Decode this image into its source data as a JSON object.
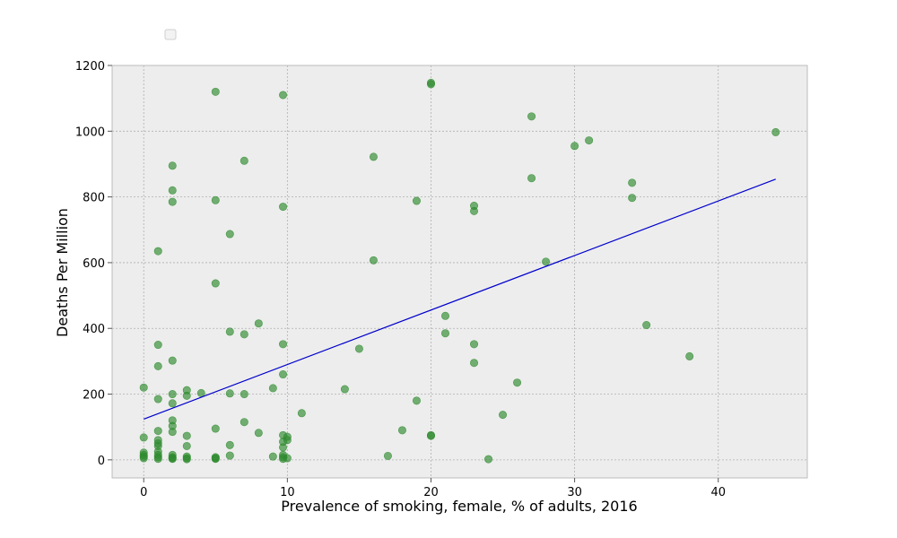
{
  "chart_data": {
    "type": "scatter",
    "title": "",
    "xlabel": "Prevalence of smoking, female, % of adults, 2016",
    "ylabel": "Deaths Per Million",
    "xlim": [
      -2.2,
      46.2
    ],
    "ylim": [
      -55,
      1200
    ],
    "xticks": [
      0,
      10,
      20,
      30,
      40
    ],
    "yticks": [
      0,
      200,
      400,
      600,
      800,
      1000,
      1200
    ],
    "grid": true,
    "legend": "top-left, empty",
    "colors": {
      "points": "#2e8b2e",
      "fit_line": "#0000cc",
      "plot_background": "#ededed",
      "grid": "#b0b0b0",
      "frame": "#bcbcbc"
    },
    "series": [
      {
        "points": [
          [
            0,
            220
          ],
          [
            0,
            68
          ],
          [
            0,
            22
          ],
          [
            0,
            15
          ],
          [
            0,
            10
          ],
          [
            0,
            5
          ],
          [
            1,
            635
          ],
          [
            1,
            350
          ],
          [
            1,
            285
          ],
          [
            1,
            185
          ],
          [
            1,
            88
          ],
          [
            1,
            60
          ],
          [
            1,
            50
          ],
          [
            1,
            42
          ],
          [
            1,
            25
          ],
          [
            1,
            15
          ],
          [
            1,
            8
          ],
          [
            1,
            3
          ],
          [
            2,
            895
          ],
          [
            2,
            820
          ],
          [
            2,
            785
          ],
          [
            2,
            302
          ],
          [
            2,
            200
          ],
          [
            2,
            172
          ],
          [
            2,
            120
          ],
          [
            2,
            103
          ],
          [
            2,
            85
          ],
          [
            2,
            15
          ],
          [
            2,
            8
          ],
          [
            2,
            5
          ],
          [
            2,
            3
          ],
          [
            3,
            212
          ],
          [
            3,
            195
          ],
          [
            3,
            73
          ],
          [
            3,
            42
          ],
          [
            3,
            10
          ],
          [
            3,
            5
          ],
          [
            3,
            2
          ],
          [
            4,
            203
          ],
          [
            5,
            1120
          ],
          [
            5,
            790
          ],
          [
            5,
            537
          ],
          [
            5,
            95
          ],
          [
            5,
            8
          ],
          [
            5,
            5
          ],
          [
            5,
            3
          ],
          [
            6,
            687
          ],
          [
            6,
            390
          ],
          [
            6,
            202
          ],
          [
            6,
            45
          ],
          [
            6,
            13
          ],
          [
            7,
            910
          ],
          [
            7,
            382
          ],
          [
            7,
            200
          ],
          [
            7,
            115
          ],
          [
            8,
            415
          ],
          [
            8,
            82
          ],
          [
            9,
            218
          ],
          [
            9,
            10
          ],
          [
            9.7,
            1110
          ],
          [
            9.7,
            770
          ],
          [
            9.7,
            352
          ],
          [
            9.7,
            260
          ],
          [
            9.7,
            75
          ],
          [
            9.7,
            55
          ],
          [
            9.7,
            38
          ],
          [
            9.7,
            15
          ],
          [
            9.7,
            8
          ],
          [
            9.7,
            3
          ],
          [
            10,
            70
          ],
          [
            10,
            60
          ],
          [
            10,
            5
          ],
          [
            11,
            142
          ],
          [
            14,
            215
          ],
          [
            15,
            338
          ],
          [
            16,
            922
          ],
          [
            16,
            607
          ],
          [
            17,
            12
          ],
          [
            18,
            90
          ],
          [
            19,
            788
          ],
          [
            19,
            180
          ],
          [
            20,
            1147
          ],
          [
            20,
            1143
          ],
          [
            20,
            75
          ],
          [
            20,
            73
          ],
          [
            21,
            438
          ],
          [
            21,
            385
          ],
          [
            23,
            773
          ],
          [
            23,
            757
          ],
          [
            23,
            352
          ],
          [
            23,
            295
          ],
          [
            24,
            2
          ],
          [
            25,
            137
          ],
          [
            26,
            235
          ],
          [
            27,
            1045
          ],
          [
            27,
            857
          ],
          [
            28,
            603
          ],
          [
            30,
            955
          ],
          [
            31,
            972
          ],
          [
            34,
            843
          ],
          [
            34,
            797
          ],
          [
            35,
            410
          ],
          [
            38,
            315
          ],
          [
            44,
            997
          ]
        ]
      }
    ],
    "fit_line": {
      "x": [
        0,
        44
      ],
      "y": [
        124,
        854
      ]
    }
  }
}
